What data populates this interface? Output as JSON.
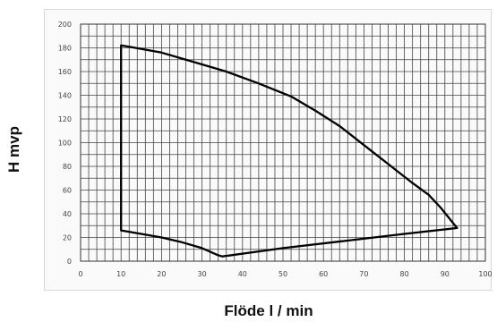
{
  "chart_data": {
    "type": "line",
    "title": "",
    "xlabel": "Flöde l / min",
    "ylabel": "H mvp",
    "xlim": [
      0,
      100
    ],
    "ylim": [
      0,
      200
    ],
    "x_ticks": [
      0,
      10,
      20,
      30,
      40,
      50,
      60,
      70,
      80,
      90,
      100
    ],
    "y_ticks": [
      0,
      20,
      40,
      60,
      80,
      100,
      120,
      140,
      160,
      180,
      200
    ],
    "grid": true,
    "series": [
      {
        "color": "#000000",
        "closed": true,
        "points": [
          [
            10,
            182
          ],
          [
            12,
            181
          ],
          [
            20,
            176
          ],
          [
            28,
            168
          ],
          [
            36,
            160
          ],
          [
            44,
            150
          ],
          [
            52,
            139
          ],
          [
            58,
            127
          ],
          [
            64,
            114
          ],
          [
            70,
            98
          ],
          [
            76,
            82
          ],
          [
            82,
            66
          ],
          [
            86,
            56
          ],
          [
            89,
            45
          ],
          [
            93,
            28
          ],
          [
            80,
            23
          ],
          [
            65,
            17
          ],
          [
            50,
            11
          ],
          [
            35,
            4
          ],
          [
            34,
            5
          ],
          [
            30,
            11
          ],
          [
            25,
            16
          ],
          [
            20,
            20
          ],
          [
            15,
            23
          ],
          [
            10,
            26
          ]
        ]
      }
    ]
  }
}
